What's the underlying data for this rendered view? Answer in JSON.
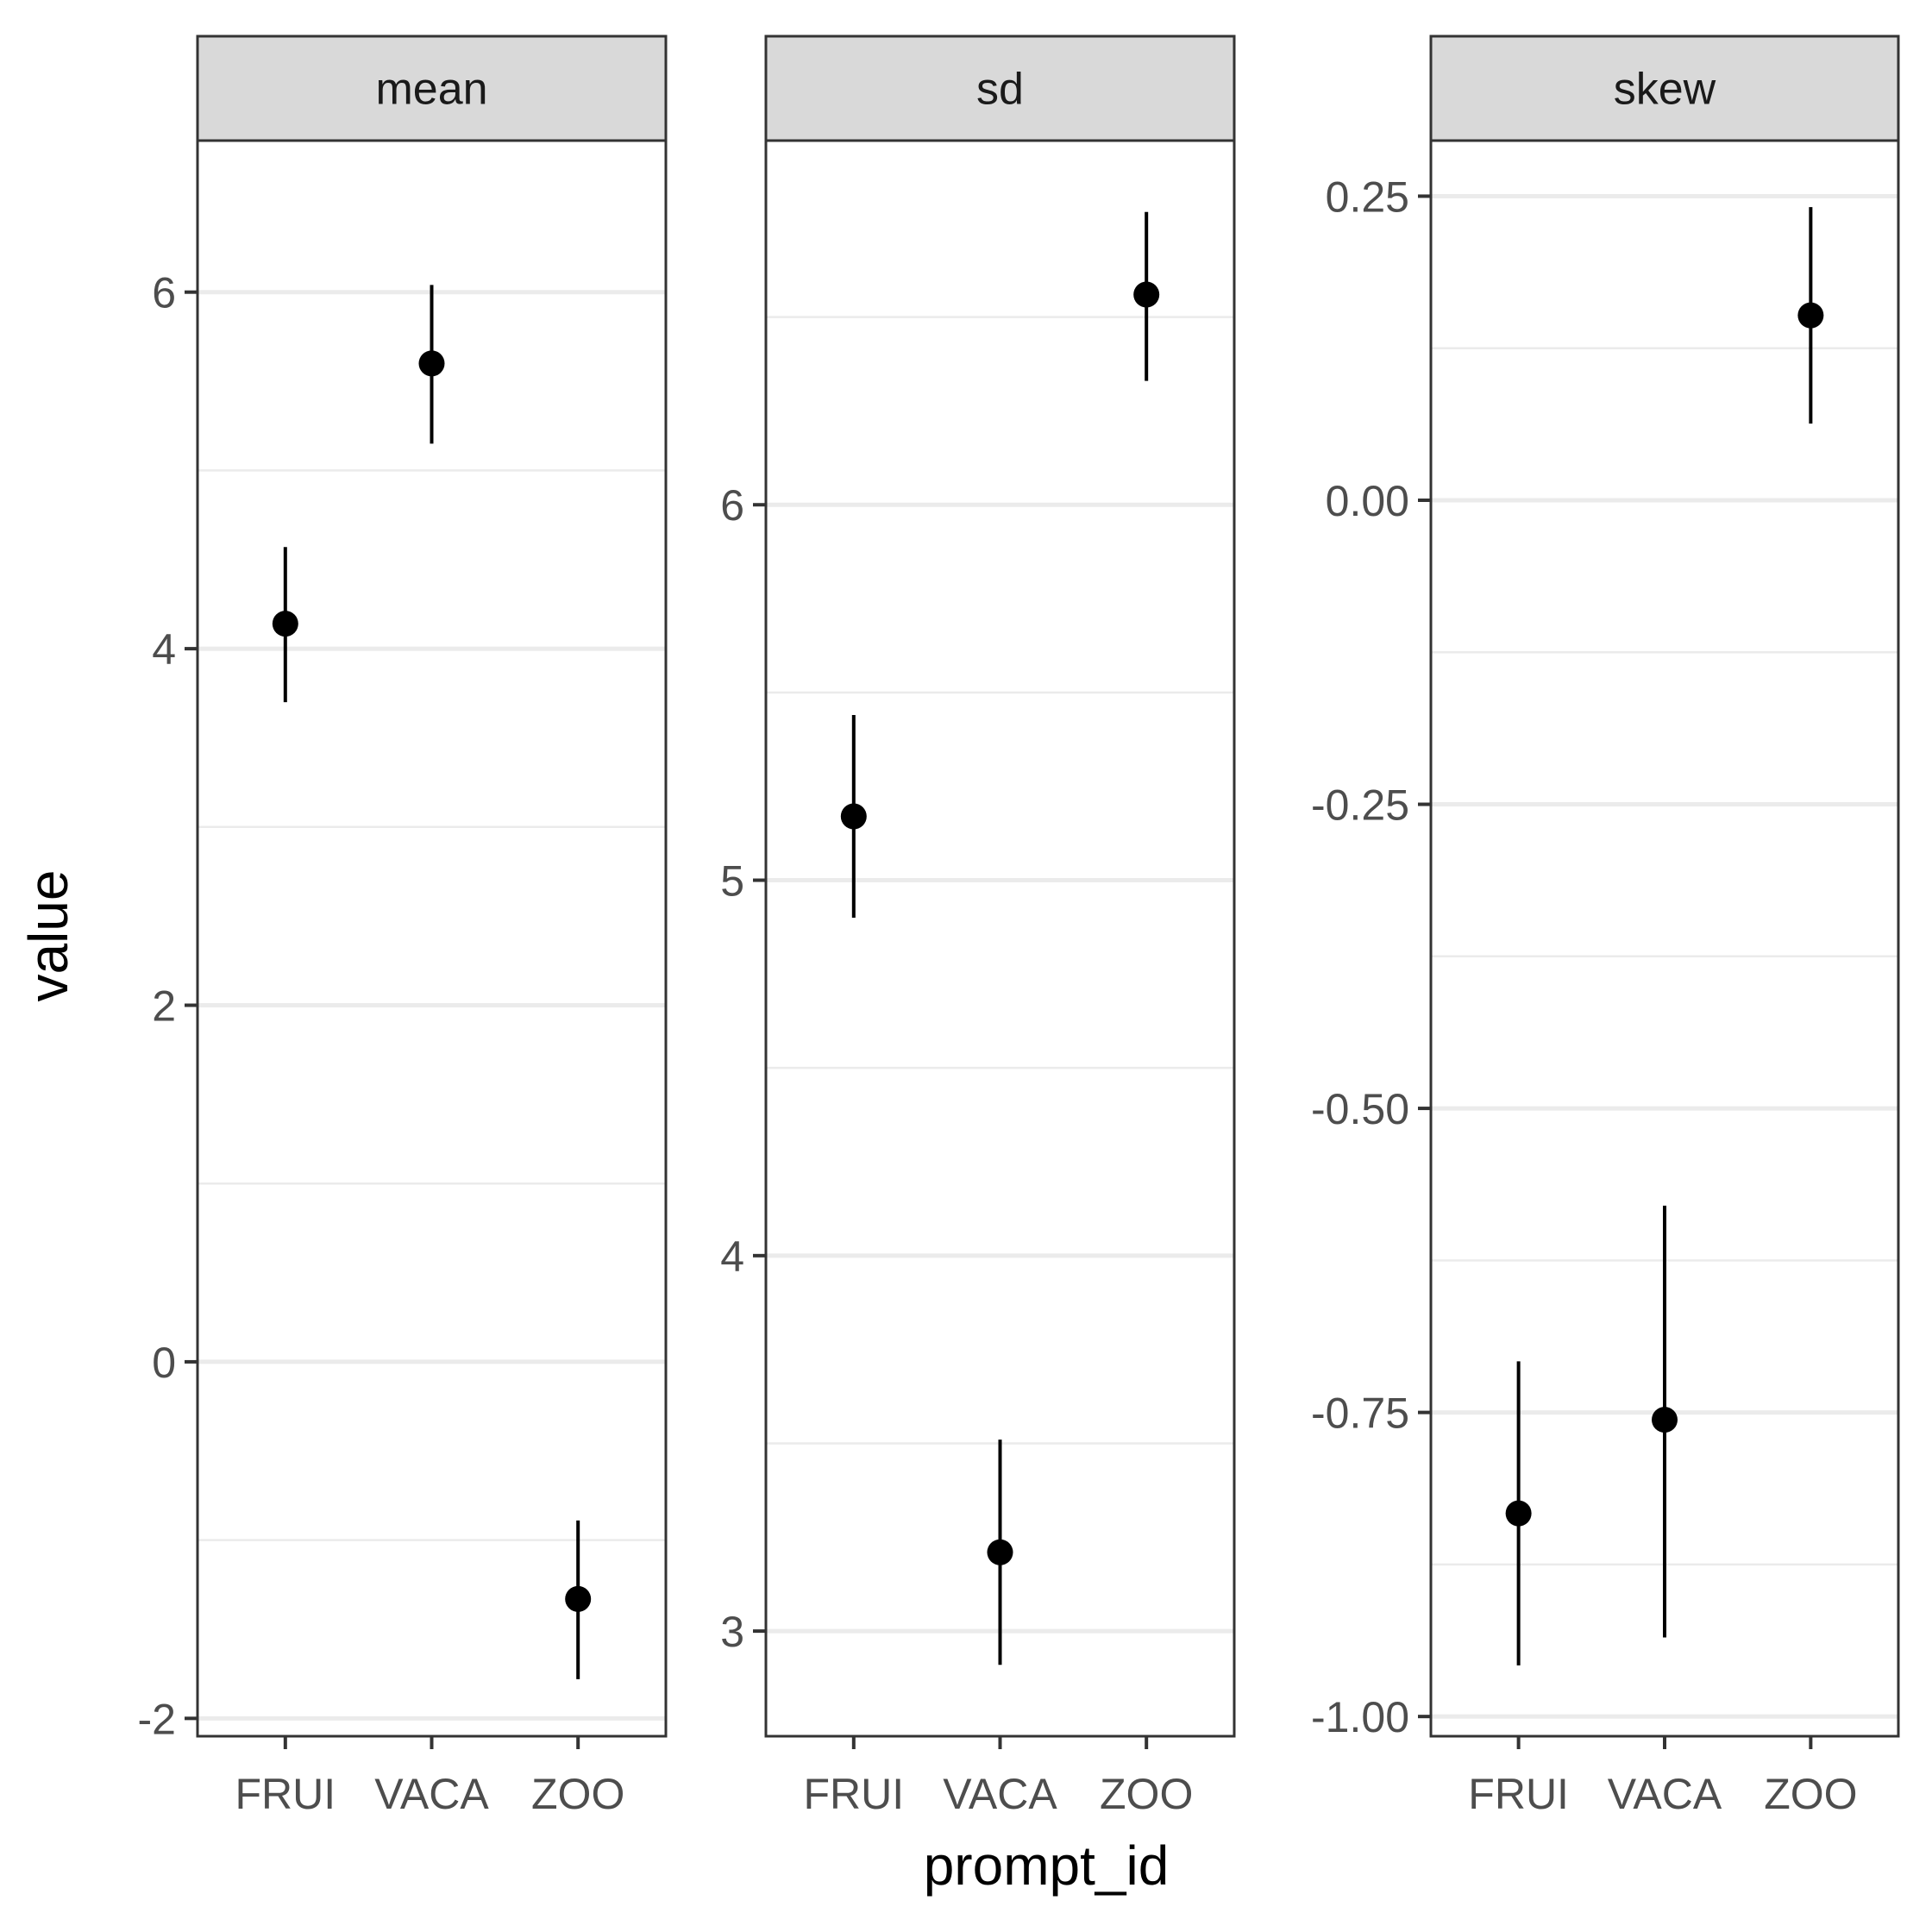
{
  "chart_data": {
    "type": "pointrange",
    "xlabel": "prompt_id",
    "ylabel": "value",
    "categories": [
      "FRUI",
      "VACA",
      "ZOO"
    ],
    "grid": true,
    "legend": "none",
    "panels": [
      {
        "label": "mean",
        "ylim": [
          -2.1,
          6.85
        ],
        "yticks": [
          -2,
          0,
          2,
          4,
          6
        ],
        "ytick_labels": [
          "-2",
          "0",
          "2",
          "4",
          "6"
        ],
        "points": [
          {
            "x": "FRUI",
            "y": 4.14,
            "lower": 3.7,
            "upper": 4.57
          },
          {
            "x": "VACA",
            "y": 5.6,
            "lower": 5.15,
            "upper": 6.04
          },
          {
            "x": "ZOO",
            "y": -1.33,
            "lower": -1.78,
            "upper": -0.89
          }
        ]
      },
      {
        "label": "sd",
        "ylim": [
          2.72,
          6.97
        ],
        "yticks": [
          3,
          4,
          5,
          6
        ],
        "ytick_labels": [
          "3",
          "4",
          "5",
          "6"
        ],
        "points": [
          {
            "x": "FRUI",
            "y": 5.17,
            "lower": 4.9,
            "upper": 5.44
          },
          {
            "x": "VACA",
            "y": 3.21,
            "lower": 2.91,
            "upper": 3.51
          },
          {
            "x": "ZOO",
            "y": 6.56,
            "lower": 6.33,
            "upper": 6.78
          }
        ]
      },
      {
        "label": "skew",
        "ylim": [
          -1.0162,
          0.2957
        ],
        "yticks": [
          -1.0,
          -0.75,
          -0.5,
          -0.25,
          0.0,
          0.25
        ],
        "ytick_labels": [
          "-1.00",
          "-0.75",
          "-0.50",
          "-0.25",
          "0.00",
          "0.25"
        ],
        "points": [
          {
            "x": "FRUI",
            "y": -0.833,
            "lower": -0.958,
            "upper": -0.708
          },
          {
            "x": "VACA",
            "y": -0.756,
            "lower": -0.935,
            "upper": -0.58
          },
          {
            "x": "ZOO",
            "y": 0.152,
            "lower": 0.063,
            "upper": 0.241
          }
        ]
      }
    ]
  }
}
